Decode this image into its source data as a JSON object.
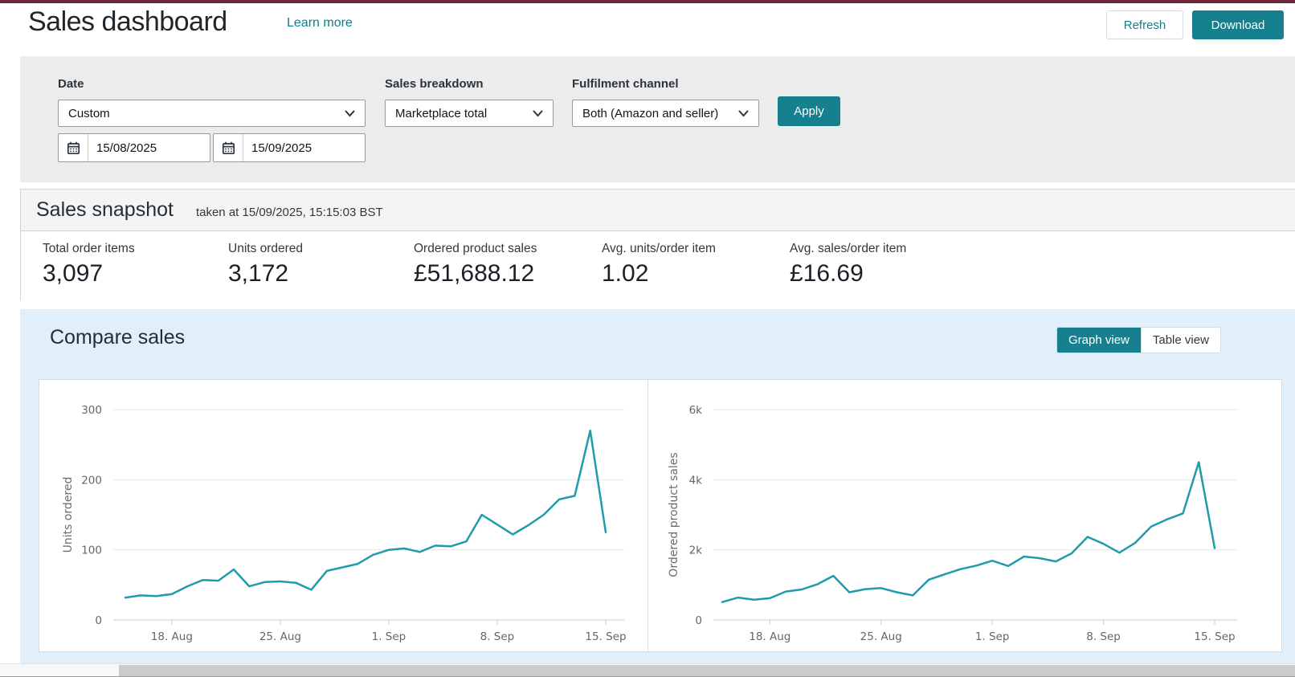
{
  "header": {
    "title": "Sales dashboard",
    "learn_more": "Learn more",
    "refresh_label": "Refresh",
    "download_label": "Download"
  },
  "filters": {
    "date": {
      "label": "Date",
      "selected": "Custom",
      "from": "15/08/2025",
      "to": "15/09/2025"
    },
    "sales_breakdown": {
      "label": "Sales breakdown",
      "selected": "Marketplace total"
    },
    "fulfilment_channel": {
      "label": "Fulfilment channel",
      "selected": "Both (Amazon and seller)"
    },
    "apply_label": "Apply"
  },
  "snapshot": {
    "title": "Sales snapshot",
    "taken_at": "taken at 15/09/2025, 15:15:03 BST",
    "metrics": [
      {
        "label": "Total order items",
        "value": "3,097"
      },
      {
        "label": "Units ordered",
        "value": "3,172"
      },
      {
        "label": "Ordered product sales",
        "value": "£51,688.12"
      },
      {
        "label": "Avg. units/order item",
        "value": "1.02"
      },
      {
        "label": "Avg. sales/order item",
        "value": "£16.69"
      }
    ]
  },
  "compare": {
    "title": "Compare sales",
    "graph_view_label": "Graph view",
    "table_view_label": "Table view"
  },
  "colors": {
    "accent_teal": "#17808e",
    "line_teal": "#1f9bab",
    "top_bar_maroon": "#6f2539",
    "section_blue": "#e0eff9"
  },
  "chart_data": [
    {
      "type": "line",
      "name": "units-ordered",
      "title": "",
      "xlabel": "",
      "ylabel": "Units ordered",
      "ylim": [
        0,
        300
      ],
      "yticks": [
        0,
        100,
        200,
        300
      ],
      "ytick_labels": [
        "0",
        "100",
        "200",
        "300"
      ],
      "grid": "on",
      "legend": "none",
      "line_color": "#1f9bab",
      "x": [
        "15 Aug",
        "16 Aug",
        "17 Aug",
        "18 Aug",
        "19 Aug",
        "20 Aug",
        "21 Aug",
        "22 Aug",
        "23 Aug",
        "24 Aug",
        "25 Aug",
        "26 Aug",
        "27 Aug",
        "28 Aug",
        "29 Aug",
        "30 Aug",
        "31 Aug",
        "1 Sep",
        "2 Sep",
        "3 Sep",
        "4 Sep",
        "5 Sep",
        "6 Sep",
        "7 Sep",
        "8 Sep",
        "9 Sep",
        "10 Sep",
        "11 Sep",
        "12 Sep",
        "13 Sep",
        "14 Sep",
        "15 Sep"
      ],
      "xtick_indices": [
        3,
        10,
        17,
        24,
        31
      ],
      "xtick_labels": [
        "18. Aug",
        "25. Aug",
        "1. Sep",
        "8. Sep",
        "15. Sep"
      ],
      "values": [
        32,
        35,
        34,
        37,
        48,
        57,
        56,
        72,
        48,
        54,
        55,
        53,
        43,
        70,
        75,
        80,
        93,
        100,
        102,
        97,
        106,
        105,
        112,
        150,
        136,
        122,
        135,
        150,
        172,
        177,
        270,
        125
      ]
    },
    {
      "type": "line",
      "name": "ordered-product-sales",
      "title": "",
      "xlabel": "",
      "ylabel": "Ordered product sales",
      "ylim": [
        0,
        6000
      ],
      "yticks": [
        0,
        2000,
        4000,
        6000
      ],
      "ytick_labels": [
        "0",
        "2k",
        "4k",
        "6k"
      ],
      "grid": "on",
      "legend": "none",
      "line_color": "#1f9bab",
      "x": [
        "15 Aug",
        "16 Aug",
        "17 Aug",
        "18 Aug",
        "19 Aug",
        "20 Aug",
        "21 Aug",
        "22 Aug",
        "23 Aug",
        "24 Aug",
        "25 Aug",
        "26 Aug",
        "27 Aug",
        "28 Aug",
        "29 Aug",
        "30 Aug",
        "31 Aug",
        "1 Sep",
        "2 Sep",
        "3 Sep",
        "4 Sep",
        "5 Sep",
        "6 Sep",
        "7 Sep",
        "8 Sep",
        "9 Sep",
        "10 Sep",
        "11 Sep",
        "12 Sep",
        "13 Sep",
        "14 Sep",
        "15 Sep"
      ],
      "xtick_indices": [
        3,
        10,
        17,
        24,
        31
      ],
      "xtick_labels": [
        "18. Aug",
        "25. Aug",
        "1. Sep",
        "8. Sep",
        "15. Sep"
      ],
      "values": [
        510,
        640,
        580,
        620,
        810,
        870,
        1020,
        1260,
        790,
        880,
        910,
        790,
        700,
        1150,
        1300,
        1450,
        1550,
        1690,
        1540,
        1810,
        1760,
        1670,
        1900,
        2370,
        2170,
        1920,
        2200,
        2660,
        2870,
        3040,
        4500,
        2050
      ]
    }
  ]
}
